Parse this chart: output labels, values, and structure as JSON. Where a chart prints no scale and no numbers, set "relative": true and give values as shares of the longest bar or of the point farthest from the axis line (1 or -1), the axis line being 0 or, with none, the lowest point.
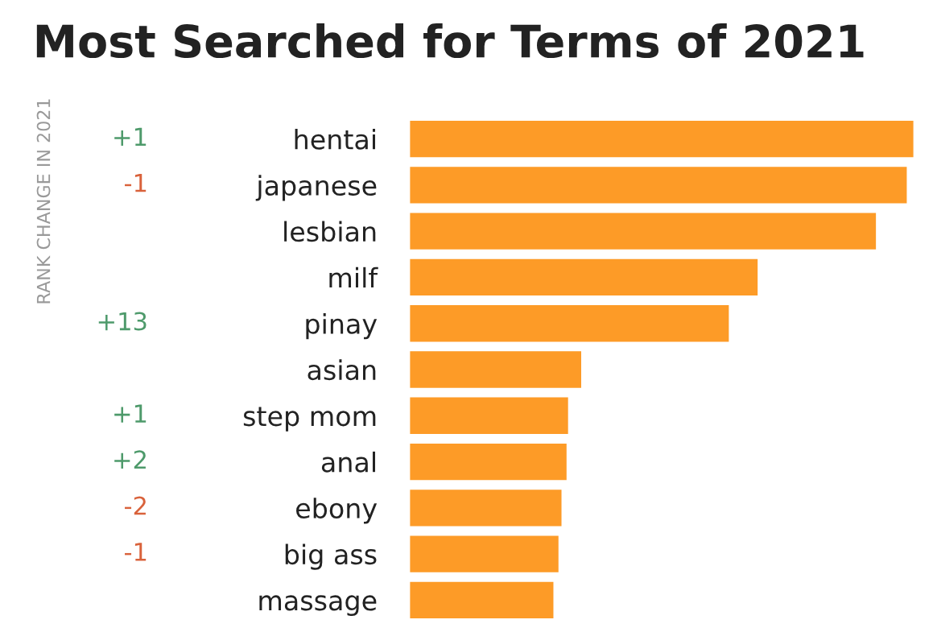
{
  "chart_data": {
    "type": "bar",
    "orientation": "horizontal",
    "relative": true,
    "title": "Most Searched for Terms of 2021",
    "categories": [
      "hentai",
      "japanese",
      "lesbian",
      "milf",
      "pinay",
      "asian",
      "step mom",
      "anal",
      "ebony",
      "big ass",
      "massage"
    ],
    "values": [
      1,
      0.987,
      0.926,
      0.692,
      0.635,
      0.343,
      0.317,
      0.314,
      0.304,
      0.298,
      0.288
    ],
    "color": "#fd9b27",
    "grid": false,
    "legend": false,
    "annotations": [
      "RANK CHANGE IN 2021",
      "+1",
      "-1",
      "+13",
      "+1",
      "+2",
      "-2",
      "-1"
    ]
  }
}
